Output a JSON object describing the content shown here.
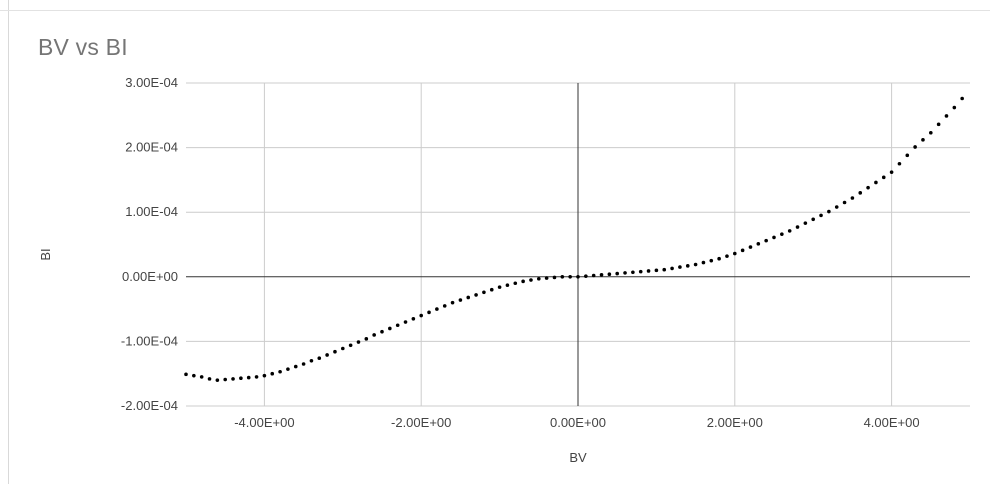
{
  "chart_data": {
    "type": "scatter",
    "title": "BV vs BI",
    "xlabel": "BV",
    "ylabel": "BI",
    "xlim": [
      -5.0,
      5.0
    ],
    "ylim": [
      -0.0002,
      0.0003
    ],
    "x_ticks": [
      -4,
      -2,
      0,
      2,
      4
    ],
    "x_tick_labels": [
      "-4.00E+00",
      "-2.00E+00",
      "0.00E+00",
      "2.00E+00",
      "4.00E+00"
    ],
    "y_ticks": [
      0.0003,
      0.0002,
      0.0001,
      0,
      -0.0001,
      -0.0002
    ],
    "y_tick_labels": [
      "3.00E-04",
      "2.00E-04",
      "1.00E-04",
      "0.00E+00",
      "-1.00E-04",
      "-2.00E-04"
    ],
    "grid": true,
    "legend": "none",
    "marker_color": "#000000",
    "gridline_color": "#cccccc",
    "zero_axis_color": "#333333",
    "series": [
      {
        "x": [
          -5.0,
          -4.9,
          -4.8,
          -4.7,
          -4.6,
          -4.5,
          -4.4,
          -4.3,
          -4.2,
          -4.1,
          -4.0,
          -3.9,
          -3.8,
          -3.7,
          -3.6,
          -3.5,
          -3.4,
          -3.3,
          -3.2,
          -3.1,
          -3.0,
          -2.9,
          -2.8,
          -2.7,
          -2.6,
          -2.5,
          -2.4,
          -2.3,
          -2.2,
          -2.1,
          -2.0,
          -1.9,
          -1.8,
          -1.7,
          -1.6,
          -1.5,
          -1.4,
          -1.3,
          -1.2,
          -1.1,
          -1.0,
          -0.9,
          -0.8,
          -0.7,
          -0.6,
          -0.5,
          -0.4,
          -0.3,
          -0.2,
          -0.1,
          0.0,
          0.1,
          0.2,
          0.3,
          0.4,
          0.5,
          0.6,
          0.7,
          0.8,
          0.9,
          1.0,
          1.1,
          1.2,
          1.3,
          1.4,
          1.5,
          1.6,
          1.7,
          1.8,
          1.9,
          2.0,
          2.1,
          2.2,
          2.3,
          2.4,
          2.5,
          2.6,
          2.7,
          2.8,
          2.9,
          3.0,
          3.1,
          3.2,
          3.3,
          3.4,
          3.5,
          3.6,
          3.7,
          3.8,
          3.9,
          4.0,
          4.1,
          4.2,
          4.3,
          4.4,
          4.5,
          4.6,
          4.7,
          4.8,
          4.9
        ],
        "y": [
          -0.000151,
          -0.000153,
          -0.000155,
          -0.000158,
          -0.00016,
          -0.000159,
          -0.000158,
          -0.000157,
          -0.000156,
          -0.000155,
          -0.000153,
          -0.00015,
          -0.000147,
          -0.000143,
          -0.000139,
          -0.000135,
          -0.00013,
          -0.000126,
          -0.000121,
          -0.000116,
          -0.000111,
          -0.000106,
          -0.000101,
          -9.6e-05,
          -9e-05,
          -8.5e-05,
          -8e-05,
          -7.5e-05,
          -7e-05,
          -6.5e-05,
          -6e-05,
          -5.5e-05,
          -5e-05,
          -4.5e-05,
          -4e-05,
          -3.6e-05,
          -3.2e-05,
          -2.8e-05,
          -2.4e-05,
          -2e-05,
          -1.6e-05,
          -1.3e-05,
          -1e-05,
          -7e-06,
          -5e-06,
          -3e-06,
          -2e-06,
          -1e-06,
          0.0,
          0.0,
          0.0,
          1e-06,
          2e-06,
          3e-06,
          4e-06,
          5e-06,
          6e-06,
          7e-06,
          8e-06,
          9e-06,
          1e-05,
          1.1e-05,
          1.3e-05,
          1.5e-05,
          1.7e-05,
          1.9e-05,
          2.2e-05,
          2.5e-05,
          2.8e-05,
          3.2e-05,
          3.6e-05,
          4.1e-05,
          4.6e-05,
          5.1e-05,
          5.6e-05,
          6.1e-05,
          6.6e-05,
          7.1e-05,
          7.7e-05,
          8.3e-05,
          8.9e-05,
          9.5e-05,
          0.000101,
          0.000108,
          0.000115,
          0.000122,
          0.00013,
          0.000138,
          0.000146,
          0.000154,
          0.000162,
          0.000175,
          0.000188,
          0.000201,
          0.000212,
          0.000223,
          0.000236,
          0.000249,
          0.000262,
          0.000276
        ]
      }
    ]
  }
}
